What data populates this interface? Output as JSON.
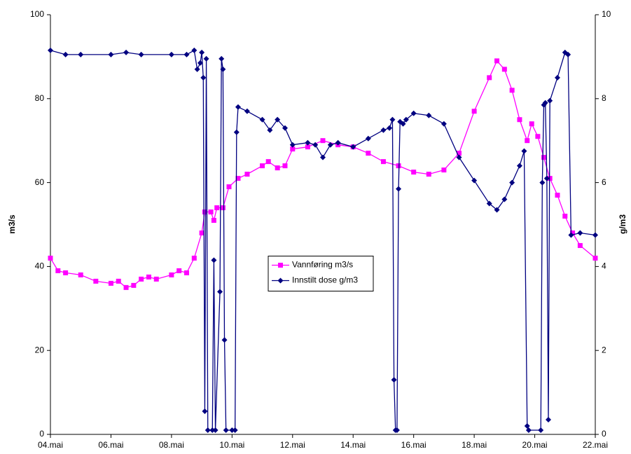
{
  "chart_data": {
    "type": "line",
    "y_label": "m3/s",
    "y2_label": "g/m3",
    "legend": "center",
    "xlim": [
      4,
      22
    ],
    "xticks": [
      {
        "value": 4,
        "label": "04.mai"
      },
      {
        "value": 6,
        "label": "06.mai"
      },
      {
        "value": 8,
        "label": "08.mai"
      },
      {
        "value": 10,
        "label": "10.mai"
      },
      {
        "value": 12,
        "label": "12.mai"
      },
      {
        "value": 14,
        "label": "14.mai"
      },
      {
        "value": 16,
        "label": "16.mai"
      },
      {
        "value": 18,
        "label": "18.mai"
      },
      {
        "value": 20,
        "label": "20.mai"
      },
      {
        "value": 22,
        "label": "22.mai"
      }
    ],
    "ylim": [
      0,
      100
    ],
    "yticks": [
      0,
      20,
      40,
      60,
      80,
      100
    ],
    "y2lim": [
      0,
      10
    ],
    "y2ticks": [
      0,
      2,
      4,
      6,
      8,
      10
    ],
    "series": [
      {
        "name": "Vannføring m3/s",
        "color": "#ff00ff",
        "marker": "square",
        "x": [
          4.0,
          4.25,
          4.5,
          5.0,
          5.5,
          6.0,
          6.25,
          6.5,
          6.75,
          7.0,
          7.25,
          7.5,
          8.0,
          8.25,
          8.5,
          8.75,
          9.0,
          9.1,
          9.3,
          9.4,
          9.5,
          9.7,
          9.9,
          10.2,
          10.5,
          11.0,
          11.2,
          11.5,
          11.75,
          12.0,
          12.5,
          13.0,
          13.5,
          14.0,
          14.5,
          15.0,
          15.5,
          16.0,
          16.5,
          17.0,
          17.5,
          18.0,
          18.5,
          18.75,
          19.0,
          19.25,
          19.5,
          19.75,
          19.9,
          20.1,
          20.3,
          20.5,
          20.75,
          21.0,
          21.25,
          21.5,
          22.0
        ],
        "values": [
          42,
          39,
          38.5,
          38,
          36.5,
          36,
          36.5,
          35,
          35.5,
          37,
          37.5,
          37,
          38,
          39,
          38.5,
          42,
          48,
          53,
          53,
          51,
          54,
          54,
          59,
          61,
          62,
          64,
          65,
          63.5,
          64,
          68,
          68.5,
          70,
          69,
          68.5,
          67,
          65,
          64,
          62.5,
          62,
          63,
          67,
          77,
          85,
          89,
          87,
          82,
          75,
          70,
          74,
          71,
          66,
          61,
          57,
          52,
          48,
          45,
          42
        ]
      },
      {
        "name": "Innstilt dose g/m3",
        "color": "#000080",
        "marker": "diamond",
        "axis": "y2",
        "x": [
          4.0,
          4.5,
          5.0,
          6.0,
          6.5,
          7.0,
          8.0,
          8.5,
          8.75,
          8.85,
          8.95,
          9.0,
          9.05,
          9.1,
          9.15,
          9.2,
          9.35,
          9.4,
          9.45,
          9.6,
          9.65,
          9.7,
          9.75,
          9.8,
          10.0,
          10.1,
          10.15,
          10.2,
          10.5,
          11.0,
          11.25,
          11.5,
          11.75,
          12.0,
          12.5,
          12.75,
          13.0,
          13.25,
          13.5,
          14.0,
          14.5,
          15.0,
          15.2,
          15.3,
          15.35,
          15.4,
          15.45,
          15.5,
          15.55,
          15.65,
          15.75,
          16.0,
          16.5,
          17.0,
          17.5,
          18.0,
          18.5,
          18.75,
          19.0,
          19.25,
          19.5,
          19.65,
          19.75,
          19.8,
          20.2,
          20.25,
          20.3,
          20.35,
          20.4,
          20.45,
          20.5,
          20.75,
          21.0,
          21.1,
          21.2,
          21.5,
          22.0
        ],
        "values": [
          9.15,
          9.05,
          9.05,
          9.05,
          9.1,
          9.05,
          9.05,
          9.05,
          9.15,
          8.7,
          8.85,
          9.1,
          8.5,
          0.55,
          8.95,
          0.1,
          0.1,
          4.15,
          0.1,
          3.4,
          8.95,
          8.7,
          2.25,
          0.1,
          0.1,
          0.1,
          7.2,
          7.8,
          7.7,
          7.5,
          7.25,
          7.5,
          7.3,
          6.9,
          6.95,
          6.9,
          6.6,
          6.9,
          6.95,
          6.85,
          7.05,
          7.25,
          7.3,
          7.5,
          1.3,
          0.1,
          0.1,
          5.85,
          7.45,
          7.4,
          7.5,
          7.65,
          7.6,
          7.4,
          6.6,
          6.05,
          5.5,
          5.35,
          5.6,
          6.0,
          6.4,
          6.75,
          0.2,
          0.1,
          0.1,
          6.0,
          7.85,
          7.9,
          6.1,
          0.35,
          7.95,
          8.5,
          9.1,
          9.05,
          4.75,
          4.8,
          4.75
        ]
      }
    ]
  }
}
